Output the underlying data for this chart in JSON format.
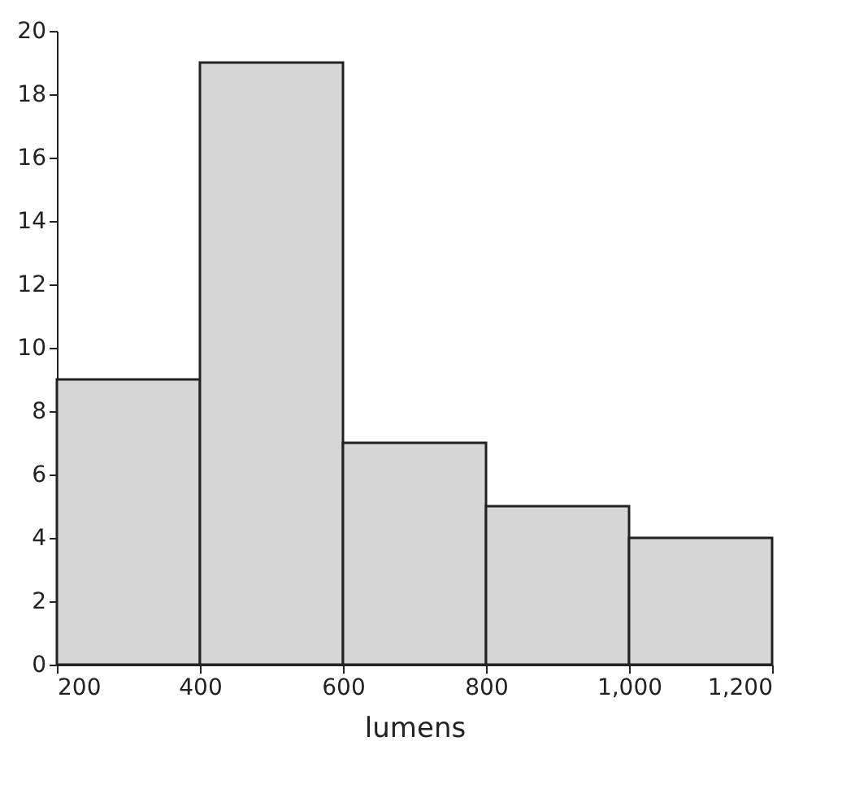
{
  "chart_data": {
    "type": "histogram",
    "xlabel": "lumens",
    "bins": [
      200,
      400,
      600,
      800,
      1000,
      1200
    ],
    "values": [
      9,
      19,
      7,
      5,
      4
    ],
    "color": "#d6d6d6",
    "xlim": [
      200,
      1200
    ],
    "xticks": [
      200,
      400,
      600,
      800,
      {
        "value": 1000,
        "label": "1,000"
      },
      {
        "value": 1200,
        "label": "1,200"
      }
    ],
    "ylim": [
      0,
      20
    ],
    "yticks": [
      0,
      2,
      4,
      6,
      8,
      10,
      12,
      14,
      16,
      18,
      20
    ],
    "grid": false
  }
}
